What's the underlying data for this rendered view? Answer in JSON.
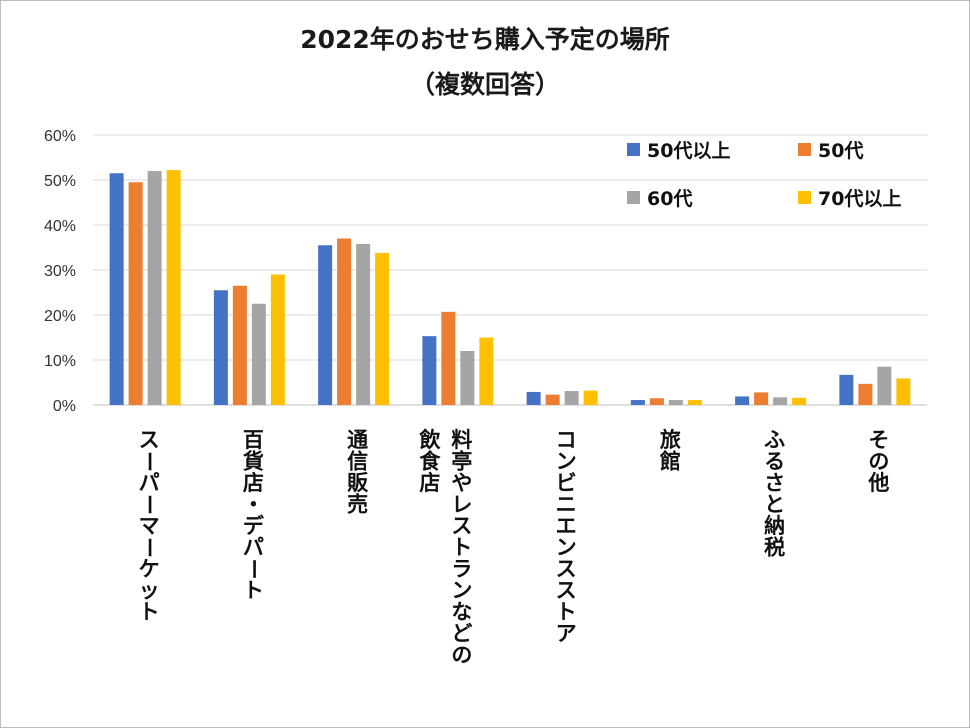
{
  "chart_data": {
    "type": "bar",
    "title": "2022年のおせち購入予定の場所",
    "subtitle": "（複数回答）",
    "categories": [
      [
        "スーパーマーケット"
      ],
      [
        "百貨店・デパート"
      ],
      [
        "通信販売"
      ],
      [
        "料亭やレストランなどの",
        "飲食店"
      ],
      [
        "コンビニエンスストア"
      ],
      [
        "旅館"
      ],
      [
        "ふるさと納税"
      ],
      [
        "その他"
      ]
    ],
    "series": [
      {
        "name": "50代以上",
        "color": "#4472C4",
        "values": [
          51.5,
          25.5,
          35.5,
          15.3,
          2.9,
          1.1,
          1.9,
          6.7
        ]
      },
      {
        "name": "50代",
        "color": "#ED7D31",
        "values": [
          49.5,
          26.5,
          37.0,
          20.7,
          2.3,
          1.5,
          2.8,
          4.7
        ]
      },
      {
        "name": "60代",
        "color": "#A5A5A5",
        "values": [
          52.0,
          22.5,
          35.8,
          12.0,
          3.1,
          1.1,
          1.7,
          8.5
        ]
      },
      {
        "name": "70代以上",
        "color": "#FFC000",
        "values": [
          52.2,
          29.0,
          33.8,
          15.0,
          3.2,
          1.1,
          1.6,
          5.9
        ]
      }
    ],
    "ylim": [
      0,
      60
    ],
    "yticks": [
      "0%",
      "10%",
      "20%",
      "30%",
      "40%",
      "50%",
      "60%"
    ],
    "grid": true,
    "legend_position": "top-right"
  }
}
